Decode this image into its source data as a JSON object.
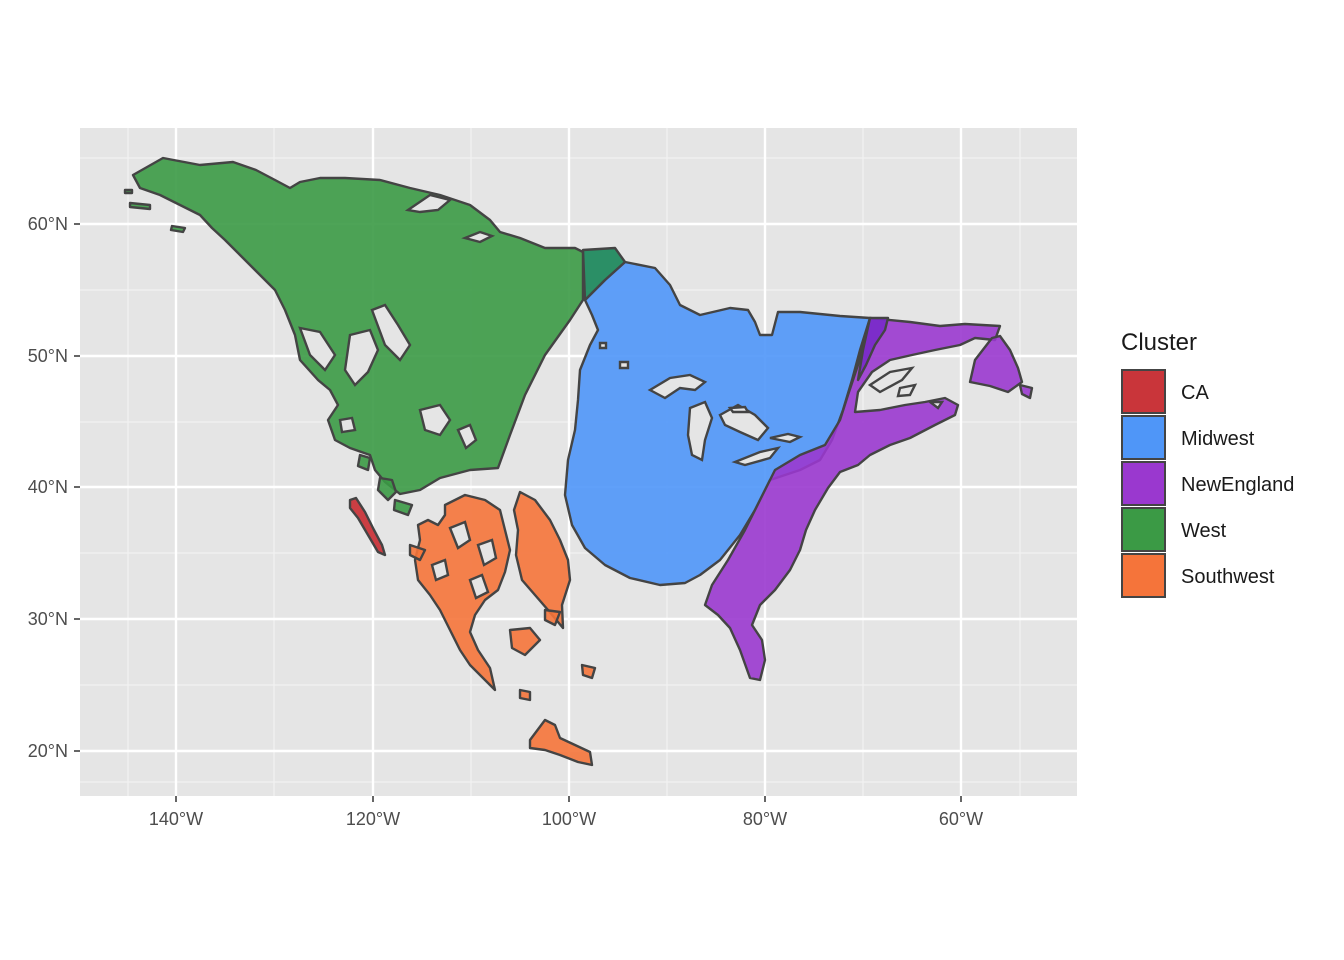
{
  "map": {
    "legend_title": "Cluster",
    "clusters": [
      {
        "name": "CA",
        "color": "#C9353A"
      },
      {
        "name": "Midwest",
        "color": "#4F96F8"
      },
      {
        "name": "NewEngland",
        "color": "#9A38CF"
      },
      {
        "name": "West",
        "color": "#3B9A45"
      },
      {
        "name": "Southwest",
        "color": "#F5743A"
      }
    ],
    "lon_ticks": [
      "140°W",
      "120°W",
      "100°W",
      "80°W",
      "60°W"
    ],
    "lat_ticks": [
      "60°N",
      "50°N",
      "40°N",
      "30°N",
      "20°N"
    ],
    "panel_background": "#E5E5E5",
    "grid_color": "#FFFFFF"
  }
}
